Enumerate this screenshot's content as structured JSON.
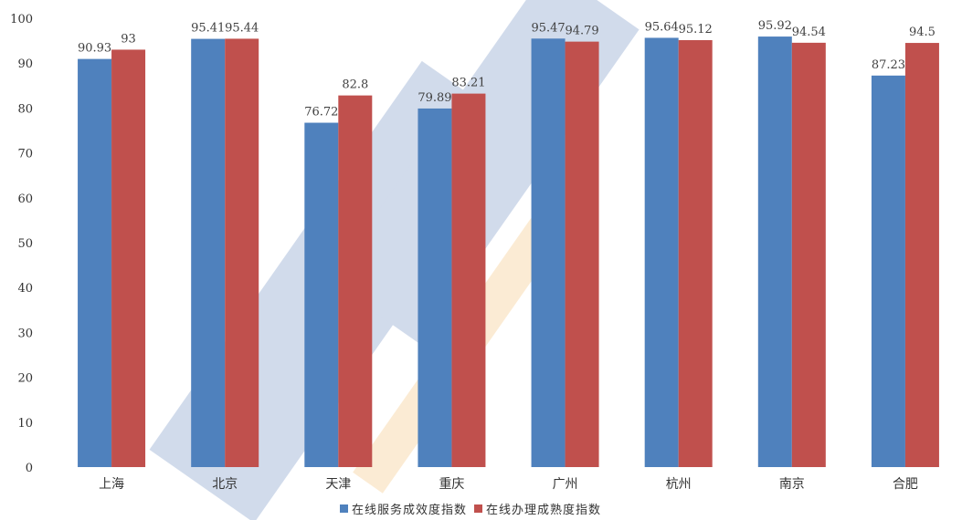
{
  "chart_data": {
    "type": "bar",
    "categories": [
      "上海",
      "北京",
      "天津",
      "重庆",
      "广州",
      "杭州",
      "南京",
      "合肥"
    ],
    "series": [
      {
        "name": "在线服务成效度指数",
        "color": "#4f81bd",
        "values": [
          90.93,
          95.41,
          76.72,
          79.89,
          95.47,
          95.64,
          95.92,
          87.23
        ],
        "labels": [
          "90.93",
          "95.41",
          "76.72",
          "79.89",
          "95.47",
          "95.64",
          "95.92",
          "87.23"
        ]
      },
      {
        "name": "在线办理成熟度指数",
        "color": "#c0504d",
        "values": [
          93,
          95.44,
          82.8,
          83.21,
          94.79,
          95.12,
          94.54,
          94.5
        ],
        "labels": [
          "93",
          "95.44",
          "82.8",
          "83.21",
          "94.79",
          "95.12",
          "94.54",
          "94.5"
        ]
      }
    ],
    "ylim": [
      0,
      100
    ],
    "yticks": [
      0,
      10,
      20,
      30,
      40,
      50,
      60,
      70,
      80,
      90,
      100
    ],
    "grid": false,
    "legend": "bottom-center"
  }
}
